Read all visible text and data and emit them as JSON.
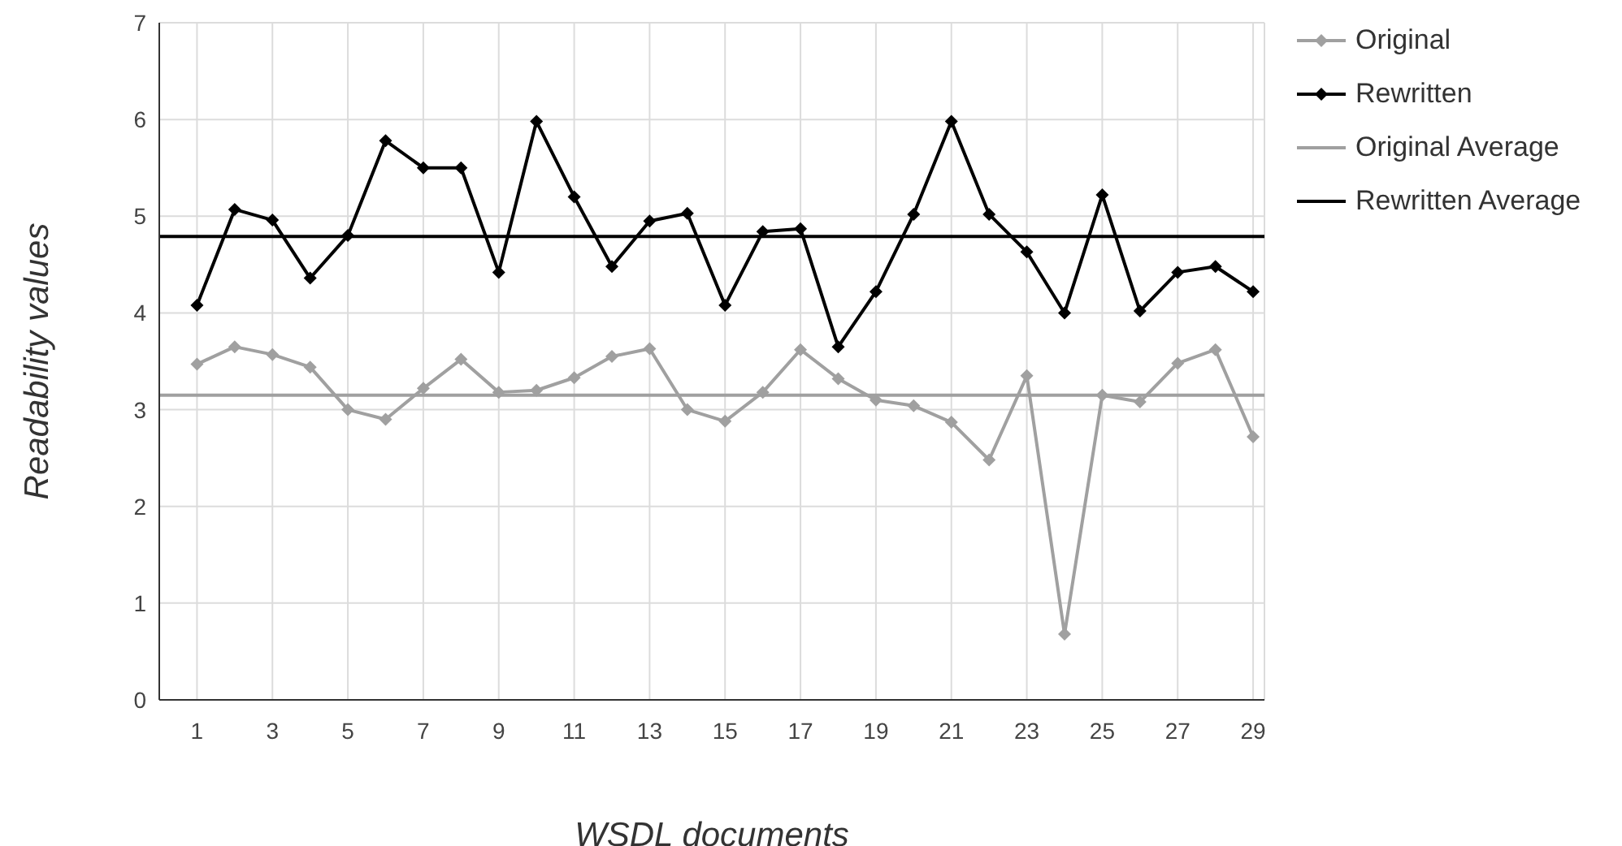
{
  "chart_data": {
    "type": "line",
    "xlabel": "WSDL documents",
    "ylabel": "Readability values",
    "x": [
      1,
      2,
      3,
      4,
      5,
      6,
      7,
      8,
      9,
      10,
      11,
      12,
      13,
      14,
      15,
      16,
      17,
      18,
      19,
      20,
      21,
      22,
      23,
      24,
      25,
      26,
      27,
      28,
      29
    ],
    "xlim": [
      0,
      29.3
    ],
    "xticks": [
      1,
      3,
      5,
      7,
      9,
      11,
      13,
      15,
      17,
      19,
      21,
      23,
      25,
      27,
      29
    ],
    "ylim": [
      0,
      7
    ],
    "yticks": [
      0,
      1,
      2,
      3,
      4,
      5,
      6,
      7
    ],
    "grid": true,
    "legend": "top right",
    "marker": "diamond",
    "line_style": "solid",
    "series": [
      {
        "name": "Original",
        "color": "#a0a0a0",
        "values": [
          3.47,
          3.65,
          3.57,
          3.44,
          3.0,
          2.9,
          3.22,
          3.52,
          3.18,
          3.2,
          3.33,
          3.55,
          3.63,
          3.0,
          2.88,
          3.18,
          3.62,
          3.32,
          3.1,
          3.04,
          2.87,
          2.48,
          3.35,
          0.68,
          3.15,
          3.08,
          3.48,
          3.62,
          2.72
        ]
      },
      {
        "name": "Rewritten",
        "color": "#000000",
        "values": [
          4.08,
          5.07,
          4.96,
          4.36,
          4.8,
          5.78,
          5.5,
          5.5,
          4.42,
          5.98,
          5.2,
          4.48,
          4.95,
          5.03,
          4.08,
          4.84,
          4.87,
          3.65,
          4.22,
          5.02,
          5.98,
          5.02,
          4.63,
          4.0,
          5.22,
          4.02,
          4.42,
          4.48,
          4.22
        ]
      }
    ],
    "ref_lines": [
      {
        "axis": "y",
        "value": 3.15,
        "label": "Original Average",
        "color": "#a0a0a0"
      },
      {
        "axis": "y",
        "value": 4.79,
        "label": "Rewritten Average",
        "color": "#000000"
      }
    ]
  }
}
